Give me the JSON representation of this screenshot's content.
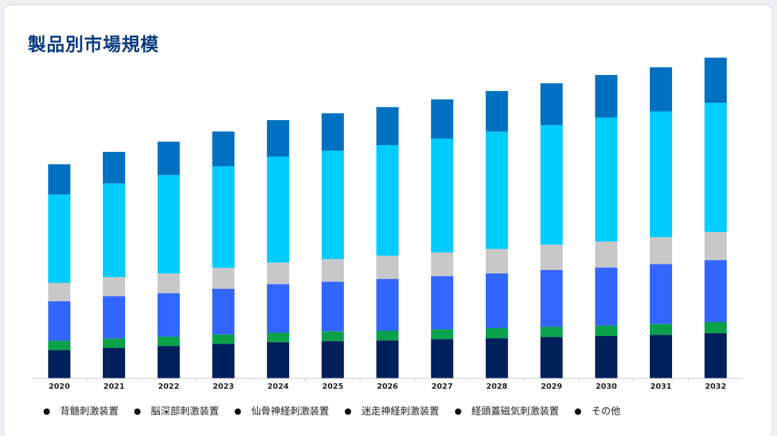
{
  "title": "製品別市場規模",
  "colors": {
    "title": "#0b3a7e",
    "axis": "#bfc3c9",
    "tick_text": "#222222"
  },
  "chart_data": {
    "type": "bar",
    "stacked": true,
    "title": "製品別市場規模",
    "categories": [
      "2020",
      "2021",
      "2022",
      "2023",
      "2024",
      "2025",
      "2026",
      "2027",
      "2028",
      "2029",
      "2030",
      "2031",
      "2032"
    ],
    "ylim": [
      0,
      100
    ],
    "y_axis_visible": false,
    "grid": false,
    "legend_position": "bottom",
    "series": [
      {
        "name": "背髄刺激装置",
        "color": "#00205b",
        "values": [
          9.1,
          9.9,
          10.5,
          11.2,
          11.7,
          12.1,
          12.3,
          12.7,
          13.0,
          13.4,
          13.7,
          14.1,
          14.6
        ]
      },
      {
        "name": "脳深部刺激装置",
        "color": "#0aa14b",
        "values": [
          3.1,
          3.0,
          3.0,
          3.0,
          3.1,
          3.1,
          3.1,
          3.2,
          3.3,
          3.3,
          3.4,
          3.5,
          3.6
        ]
      },
      {
        "name": "仙骨神経刺激装置",
        "color": "#3366ff",
        "values": [
          12.8,
          13.7,
          14.1,
          14.8,
          15.7,
          16.1,
          16.8,
          17.2,
          17.7,
          18.4,
          18.8,
          19.4,
          20.1
        ]
      },
      {
        "name": "迷走神経刺激装置",
        "color": "#c8c8c8",
        "values": [
          5.9,
          6.2,
          6.4,
          6.8,
          7.0,
          7.3,
          7.5,
          7.7,
          7.9,
          8.2,
          8.4,
          8.7,
          9.1
        ]
      },
      {
        "name": "経頭蓋磁気刺激装置",
        "color": "#00ccff",
        "values": [
          28.6,
          30.3,
          31.8,
          32.8,
          34.3,
          35.1,
          35.8,
          36.8,
          38.0,
          38.7,
          40.1,
          40.7,
          41.8
        ]
      },
      {
        "name": "その他",
        "color": "#0070c0",
        "values": [
          9.8,
          10.2,
          10.8,
          11.3,
          11.8,
          12.1,
          12.3,
          12.7,
          13.1,
          13.5,
          13.8,
          14.3,
          14.6
        ]
      }
    ]
  }
}
